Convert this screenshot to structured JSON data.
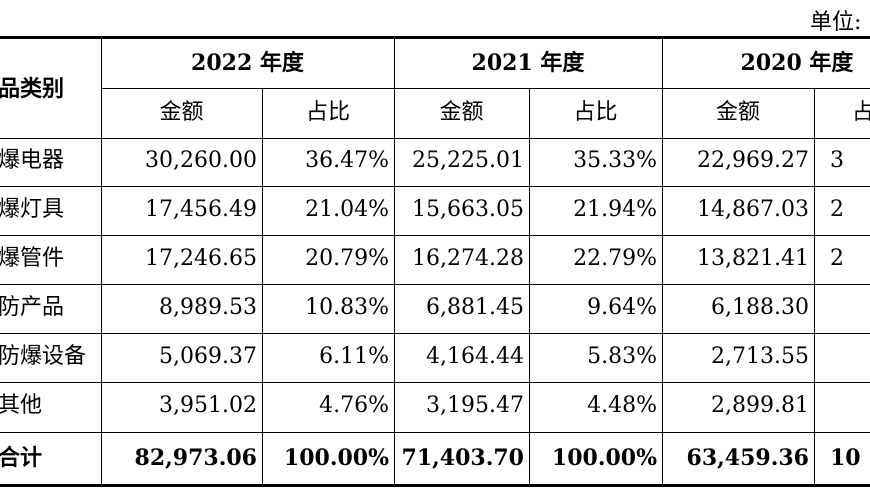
{
  "unit_note": "单位:",
  "header": {
    "category_label": "品类别",
    "years": [
      "2022 年度",
      "2021 年度",
      "2020 年度"
    ],
    "amount_label": "金额",
    "share_label": "占比",
    "share_label_clipped": "占"
  },
  "rows": [
    {
      "category": "爆电器",
      "y2022_amount": "30,260.00",
      "y2022_share": "36.47%",
      "y2021_amount": "25,225.01",
      "y2021_share": "35.33%",
      "y2020_amount": "22,969.27",
      "y2020_share_clipped": "3"
    },
    {
      "category": "爆灯具",
      "y2022_amount": "17,456.49",
      "y2022_share": "21.04%",
      "y2021_amount": "15,663.05",
      "y2021_share": "21.94%",
      "y2020_amount": "14,867.03",
      "y2020_share_clipped": "2"
    },
    {
      "category": "爆管件",
      "y2022_amount": "17,246.65",
      "y2022_share": "20.79%",
      "y2021_amount": "16,274.28",
      "y2021_share": "22.79%",
      "y2020_amount": "13,821.41",
      "y2020_share_clipped": "2"
    },
    {
      "category": "防产品",
      "y2022_amount": "8,989.53",
      "y2022_share": "10.83%",
      "y2021_amount": "6,881.45",
      "y2021_share": "9.64%",
      "y2020_amount": "6,188.30",
      "y2020_share_clipped": ""
    },
    {
      "category": "防爆设备",
      "y2022_amount": "5,069.37",
      "y2022_share": "6.11%",
      "y2021_amount": "4,164.44",
      "y2021_share": "5.83%",
      "y2020_amount": "2,713.55",
      "y2020_share_clipped": ""
    },
    {
      "category": "其他",
      "y2022_amount": "3,951.02",
      "y2022_share": "4.76%",
      "y2021_amount": "3,195.47",
      "y2021_share": "4.48%",
      "y2020_amount": "2,899.81",
      "y2020_share_clipped": ""
    }
  ],
  "total": {
    "category": "合计",
    "y2022_amount": "82,973.06",
    "y2022_share": "100.00%",
    "y2021_amount": "71,403.70",
    "y2021_share": "100.00%",
    "y2020_amount": "63,459.36",
    "y2020_share_clipped": "10"
  }
}
